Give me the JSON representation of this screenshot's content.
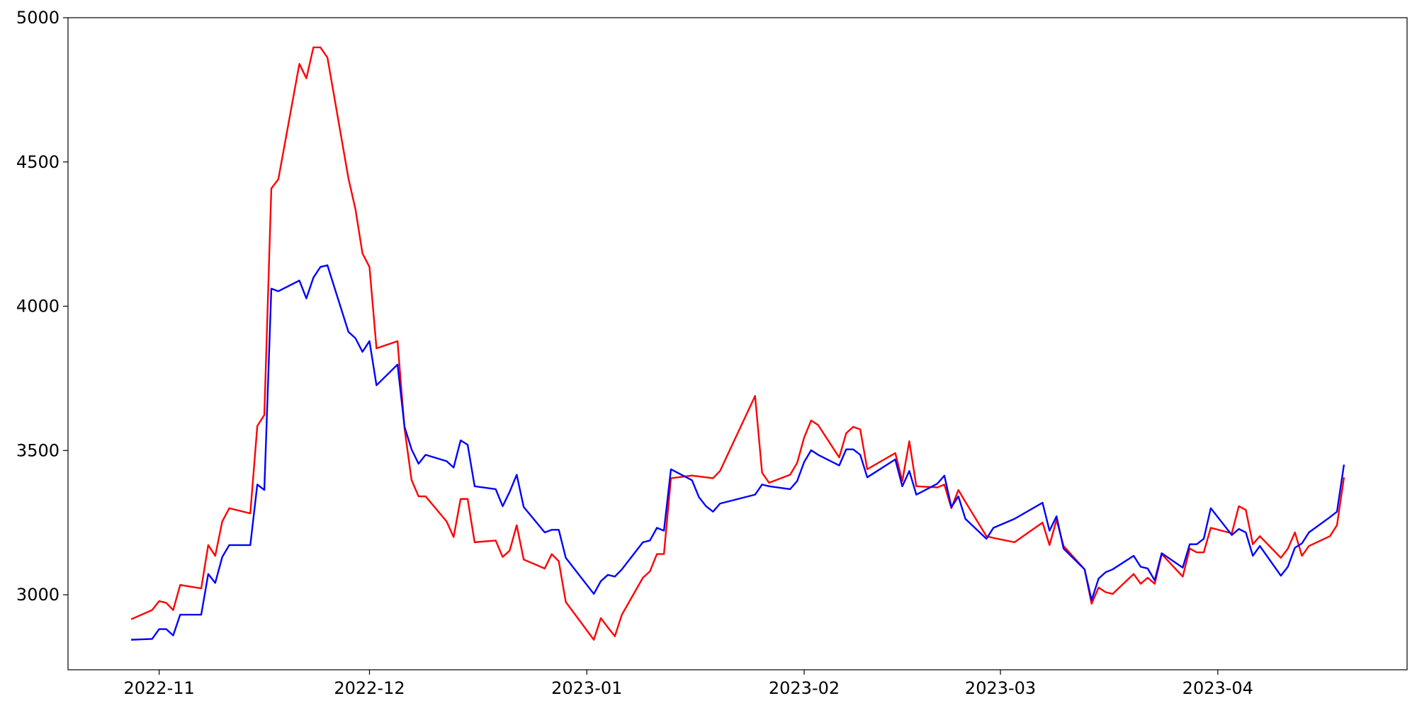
{
  "chart_data": {
    "type": "line",
    "x": [
      "2022-10-28",
      "2022-10-31",
      "2022-11-01",
      "2022-11-02",
      "2022-11-03",
      "2022-11-04",
      "2022-11-07",
      "2022-11-08",
      "2022-11-09",
      "2022-11-10",
      "2022-11-11",
      "2022-11-14",
      "2022-11-15",
      "2022-11-16",
      "2022-11-17",
      "2022-11-18",
      "2022-11-21",
      "2022-11-22",
      "2022-11-23",
      "2022-11-24",
      "2022-11-25",
      "2022-11-28",
      "2022-11-29",
      "2022-11-30",
      "2022-12-01",
      "2022-12-02",
      "2022-12-05",
      "2022-12-06",
      "2022-12-07",
      "2022-12-08",
      "2022-12-09",
      "2022-12-12",
      "2022-12-13",
      "2022-12-14",
      "2022-12-15",
      "2022-12-16",
      "2022-12-19",
      "2022-12-20",
      "2022-12-21",
      "2022-12-22",
      "2022-12-23",
      "2022-12-26",
      "2022-12-27",
      "2022-12-28",
      "2022-12-29",
      "2023-01-02",
      "2023-01-03",
      "2023-01-04",
      "2023-01-05",
      "2023-01-06",
      "2023-01-09",
      "2023-01-10",
      "2023-01-11",
      "2023-01-12",
      "2023-01-13",
      "2023-01-16",
      "2023-01-17",
      "2023-01-18",
      "2023-01-19",
      "2023-01-20",
      "2023-01-25",
      "2023-01-26",
      "2023-01-27",
      "2023-01-30",
      "2023-01-31",
      "2023-02-01",
      "2023-02-02",
      "2023-02-03",
      "2023-02-06",
      "2023-02-07",
      "2023-02-08",
      "2023-02-09",
      "2023-02-10",
      "2023-02-14",
      "2023-02-15",
      "2023-02-16",
      "2023-02-17",
      "2023-02-20",
      "2023-02-21",
      "2023-02-22",
      "2023-02-23",
      "2023-02-24",
      "2023-02-27",
      "2023-02-28",
      "2023-03-03",
      "2023-03-07",
      "2023-03-08",
      "2023-03-09",
      "2023-03-10",
      "2023-03-13",
      "2023-03-14",
      "2023-03-15",
      "2023-03-16",
      "2023-03-17",
      "2023-03-20",
      "2023-03-21",
      "2023-03-22",
      "2023-03-23",
      "2023-03-24",
      "2023-03-27",
      "2023-03-28",
      "2023-03-29",
      "2023-03-30",
      "2023-03-31",
      "2023-04-03",
      "2023-04-04",
      "2023-04-05",
      "2023-04-06",
      "2023-04-07",
      "2023-04-10",
      "2023-04-11",
      "2023-04-12",
      "2023-04-13",
      "2023-04-14",
      "2023-04-17",
      "2023-04-18",
      "2023-04-19"
    ],
    "series": [
      {
        "color": "#ff0000",
        "values": [
          2915,
          2947,
          2978,
          2972,
          2947,
          3034,
          3022,
          3172,
          3135,
          3254,
          3300,
          3282,
          3585,
          3623,
          4408,
          4440,
          4840,
          4790,
          4897,
          4897,
          4862,
          4443,
          4336,
          4183,
          4136,
          3854,
          3879,
          3576,
          3398,
          3341,
          3341,
          3254,
          3200,
          3332,
          3332,
          3182,
          3188,
          3131,
          3153,
          3241,
          3122,
          3091,
          3141,
          3116,
          2975,
          2844,
          2919,
          2887,
          2856,
          2931,
          3059,
          3081,
          3141,
          3141,
          3404,
          3413,
          3410,
          3407,
          3404,
          3429,
          3689,
          3423,
          3388,
          3416,
          3457,
          3545,
          3604,
          3588,
          3476,
          3560,
          3582,
          3573,
          3435,
          3491,
          3394,
          3532,
          3376,
          3372,
          3382,
          3300,
          3363,
          3322,
          3203,
          3197,
          3182,
          3250,
          3172,
          3260,
          3169,
          3088,
          2969,
          3025,
          3009,
          3003,
          3072,
          3038,
          3059,
          3038,
          3141,
          3063,
          3160,
          3147,
          3147,
          3232,
          3213,
          3307,
          3294,
          3175,
          3203,
          3128,
          3160,
          3216,
          3135,
          3169,
          3203,
          3241,
          3407
        ]
      },
      {
        "color": "#0000ff",
        "values": [
          2844,
          2847,
          2881,
          2881,
          2859,
          2931,
          2931,
          3072,
          3041,
          3131,
          3172,
          3172,
          3382,
          3363,
          4061,
          4052,
          4089,
          4027,
          4099,
          4136,
          4142,
          3911,
          3889,
          3842,
          3879,
          3726,
          3798,
          3582,
          3504,
          3454,
          3485,
          3463,
          3441,
          3535,
          3520,
          3376,
          3366,
          3307,
          3357,
          3416,
          3304,
          3216,
          3225,
          3225,
          3128,
          3003,
          3047,
          3069,
          3063,
          3088,
          3182,
          3188,
          3232,
          3222,
          3435,
          3397,
          3338,
          3307,
          3288,
          3316,
          3347,
          3382,
          3376,
          3366,
          3394,
          3460,
          3501,
          3485,
          3448,
          3504,
          3504,
          3485,
          3407,
          3469,
          3376,
          3429,
          3347,
          3385,
          3413,
          3304,
          3341,
          3263,
          3194,
          3232,
          3263,
          3319,
          3222,
          3272,
          3160,
          3088,
          2981,
          3056,
          3078,
          3088,
          3135,
          3097,
          3091,
          3050,
          3144,
          3094,
          3175,
          3175,
          3194,
          3300,
          3207,
          3228,
          3216,
          3135,
          3169,
          3066,
          3097,
          3163,
          3178,
          3216,
          3269,
          3288,
          3451
        ]
      }
    ],
    "xlim": [
      "2022-10-19",
      "2023-04-28"
    ],
    "xticks": [
      {
        "value": "2022-11-01",
        "label": "2022-11"
      },
      {
        "value": "2022-12-01",
        "label": "2022-12"
      },
      {
        "value": "2023-01-01",
        "label": "2023-01"
      },
      {
        "value": "2023-02-01",
        "label": "2023-02"
      },
      {
        "value": "2023-03-01",
        "label": "2023-03"
      },
      {
        "value": "2023-04-01",
        "label": "2023-04"
      }
    ],
    "ylim": [
      2740,
      5000
    ],
    "yticks": [
      3000,
      3500,
      4000,
      4500,
      5000
    ],
    "grid": false
  }
}
